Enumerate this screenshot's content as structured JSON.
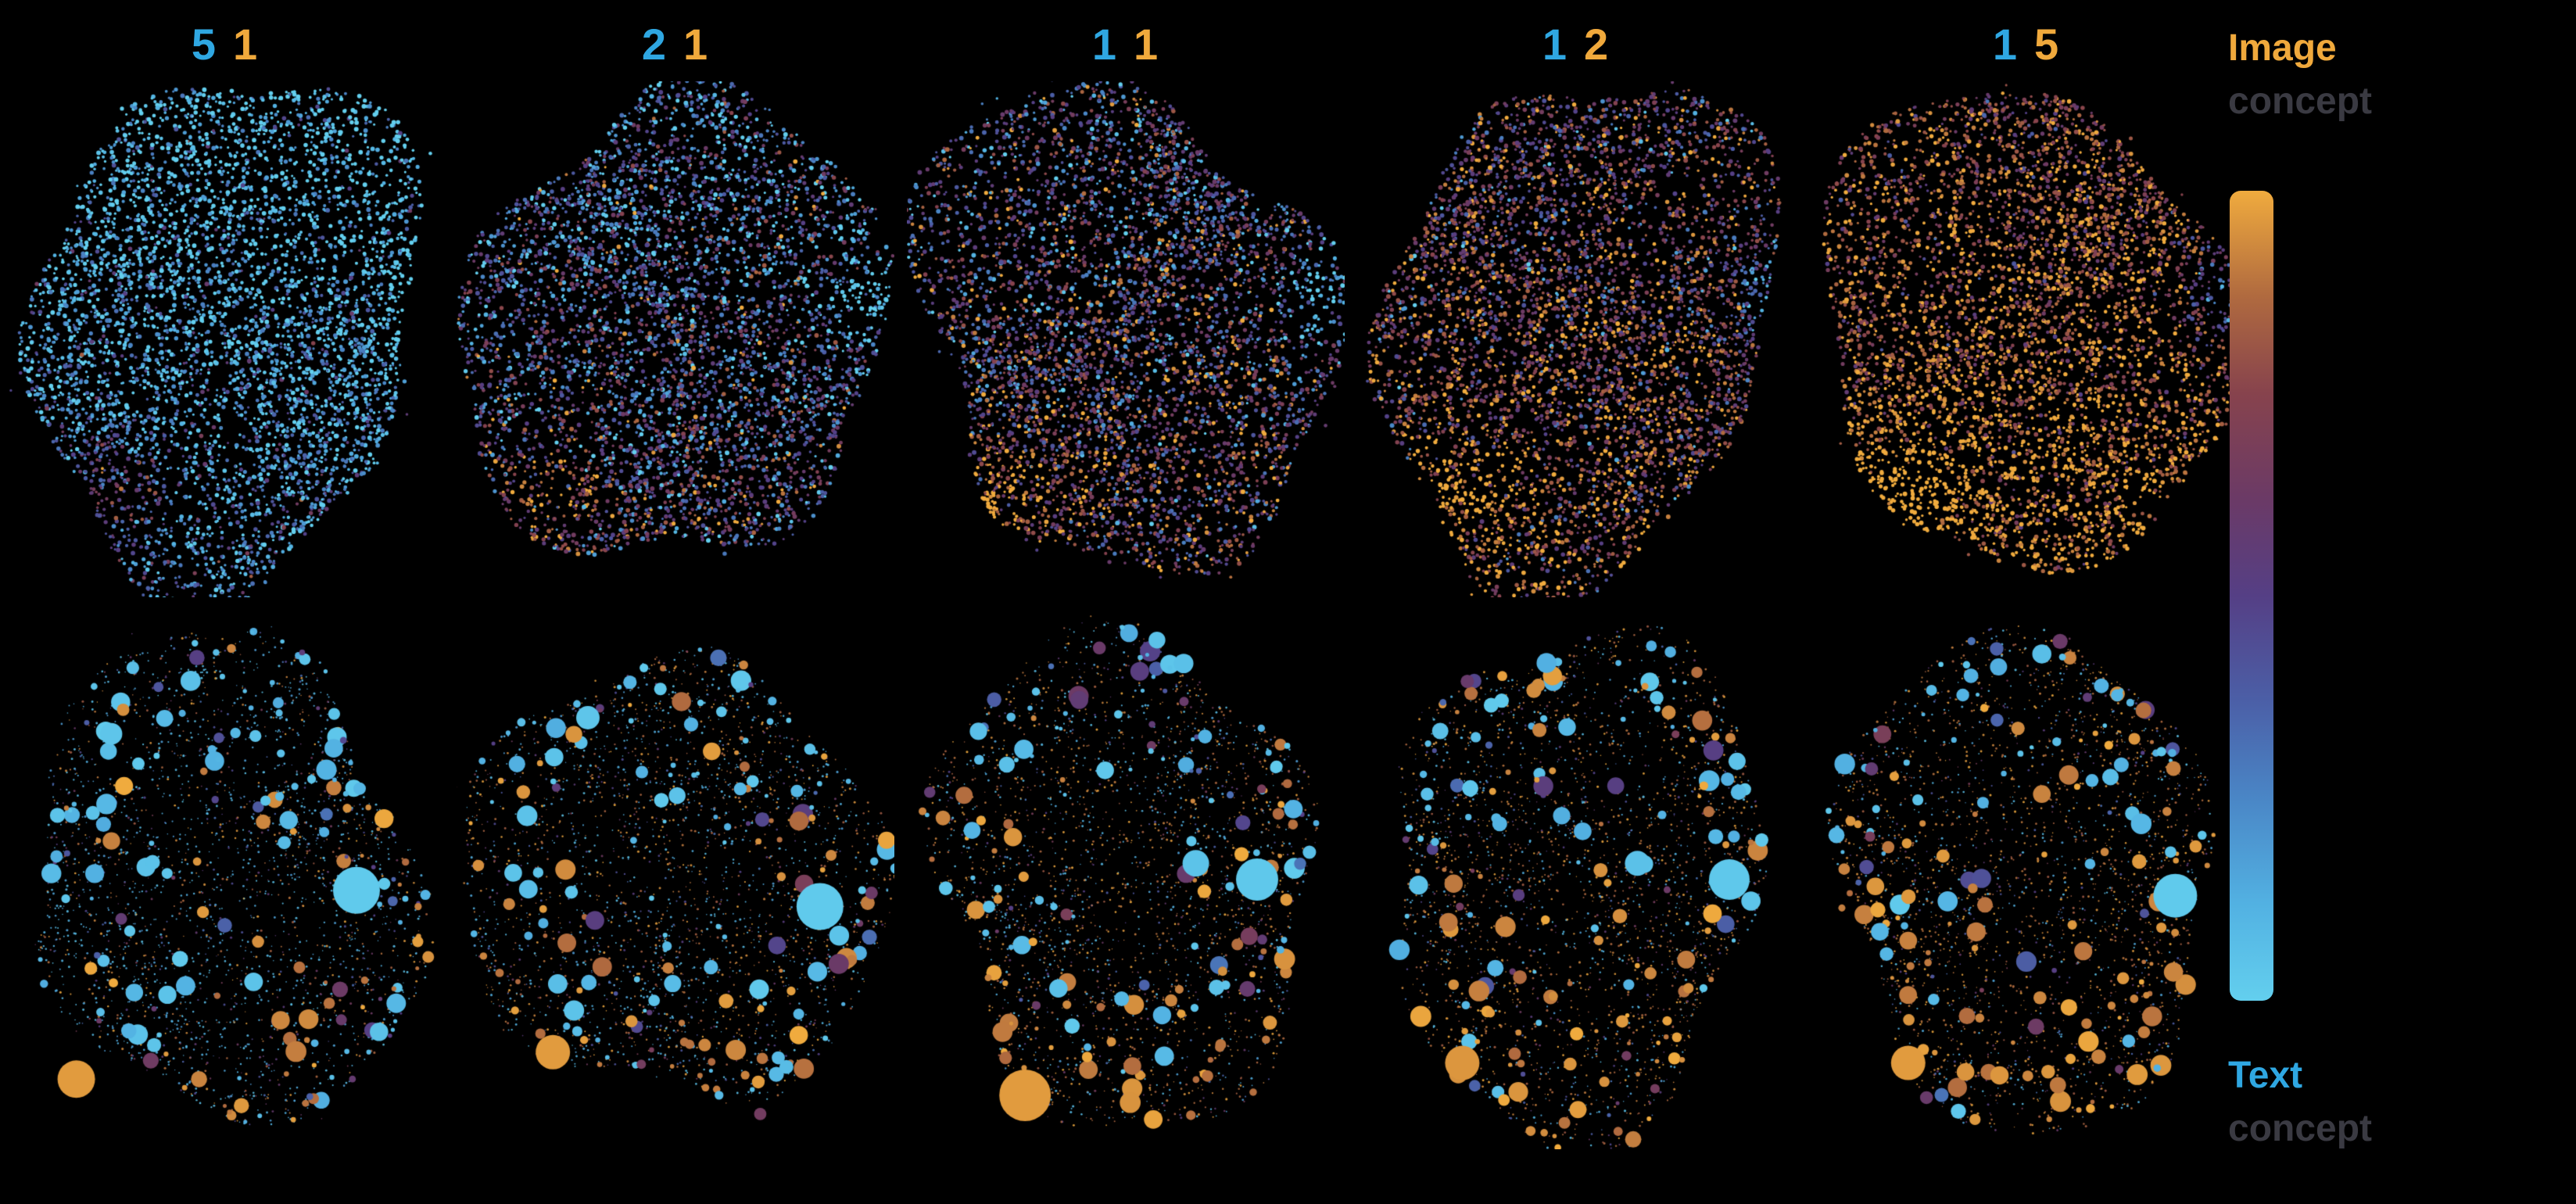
{
  "page": {
    "background": "#000000"
  },
  "legend": {
    "image_label": "Image",
    "concept_label_top": "concept",
    "text_label": "Text",
    "concept_label_bottom": "concept",
    "image_color": "#f0a93c",
    "text_color": "#2fa7e2",
    "concept_color": "#3a3a42"
  },
  "chart_data": {
    "type": "scatter",
    "title": "",
    "layout": "2 rows x 5 columns of UMAP-style point-cloud embeddings on black; column headers give Text:Image concept mixing ratios (blue digit = text, orange digit = image); right-hand vertical colorbar maps point color from Image concept (orange, top) through dark purple to Text concept (cyan, bottom); top row = dense small points, bottom row = sparse sized bubbles with one large cyan cluster at mid-right and one large orange cluster at bottom-left of each panel",
    "colormap_stops_text_to_image": [
      "#63cfee",
      "#52b1e2",
      "#4a86c6",
      "#4b5fa7",
      "#553f85",
      "#6b3a66",
      "#87434d",
      "#b06a3f",
      "#f0ab3e"
    ],
    "columns": [
      {
        "ratio_text": "5",
        "ratio_image": "1",
        "top": {
          "points": 4600,
          "mean_score": 0.13,
          "spread": 0.2,
          "seed": 11
        },
        "bottom": {
          "speckle": 2400,
          "speckle_image_fraction": 0.25,
          "bubbles": 185,
          "image_fraction": 0.34,
          "seed": 12,
          "large_circles": [
            {
              "x": 0.8,
              "y": 0.52,
              "r": 30,
              "score": 0.02
            },
            {
              "x": 0.24,
              "y": 0.23,
              "r": 14,
              "score": 0.04
            },
            {
              "x": 0.16,
              "y": 0.87,
              "r": 24,
              "score": 0.97
            }
          ]
        }
      },
      {
        "ratio_text": "2",
        "ratio_image": "1",
        "top": {
          "points": 4600,
          "mean_score": 0.4,
          "spread": 0.27,
          "seed": 21
        },
        "bottom": {
          "speckle": 2400,
          "speckle_image_fraction": 0.45,
          "bubbles": 185,
          "image_fraction": 0.42,
          "seed": 22,
          "large_circles": [
            {
              "x": 0.83,
              "y": 0.55,
              "r": 30,
              "score": 0.02
            },
            {
              "x": 0.3,
              "y": 0.2,
              "r": 15,
              "score": 0.04
            },
            {
              "x": 0.22,
              "y": 0.82,
              "r": 22,
              "score": 0.97
            }
          ]
        }
      },
      {
        "ratio_text": "1",
        "ratio_image": "1",
        "top": {
          "points": 4600,
          "mean_score": 0.55,
          "spread": 0.27,
          "seed": 31
        },
        "bottom": {
          "speckle": 2400,
          "speckle_image_fraction": 0.55,
          "bubbles": 185,
          "image_fraction": 0.5,
          "seed": 32,
          "large_circles": [
            {
              "x": 0.8,
              "y": 0.5,
              "r": 27,
              "score": 0.03
            },
            {
              "x": 0.66,
              "y": 0.47,
              "r": 17,
              "score": 0.05
            },
            {
              "x": 0.27,
              "y": 0.9,
              "r": 33,
              "score": 0.97
            }
          ]
        }
      },
      {
        "ratio_text": "1",
        "ratio_image": "2",
        "top": {
          "points": 4600,
          "mean_score": 0.7,
          "spread": 0.24,
          "seed": 41
        },
        "bottom": {
          "speckle": 2400,
          "speckle_image_fraction": 0.6,
          "bubbles": 185,
          "image_fraction": 0.55,
          "seed": 42,
          "large_circles": [
            {
              "x": 0.85,
              "y": 0.5,
              "r": 26,
              "score": 0.03
            },
            {
              "x": 0.64,
              "y": 0.47,
              "r": 16,
              "score": 0.06
            },
            {
              "x": 0.24,
              "y": 0.84,
              "r": 22,
              "score": 0.96
            }
          ]
        }
      },
      {
        "ratio_text": "1",
        "ratio_image": "5",
        "top": {
          "points": 4600,
          "mean_score": 0.86,
          "spread": 0.18,
          "seed": 51
        },
        "bottom": {
          "speckle": 2400,
          "speckle_image_fraction": 0.65,
          "bubbles": 185,
          "image_fraction": 0.6,
          "seed": 52,
          "large_circles": [
            {
              "x": 0.84,
              "y": 0.53,
              "r": 28,
              "score": 0.02
            },
            {
              "x": 0.23,
              "y": 0.84,
              "r": 22,
              "score": 0.97
            }
          ]
        }
      }
    ]
  }
}
